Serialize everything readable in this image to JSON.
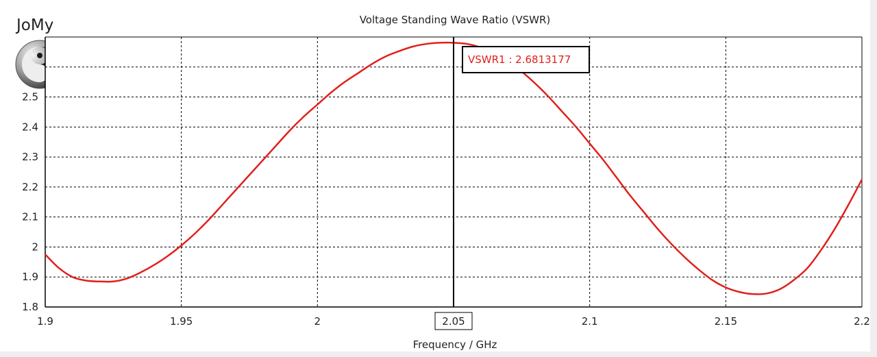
{
  "logo": {
    "text": "JoMy",
    "icon": "yin-yang-icon"
  },
  "chart_data": {
    "type": "line",
    "title": "Voltage Standing Wave Ratio (VSWR)",
    "xlabel": "Frequency / GHz",
    "ylabel": "",
    "xlim": [
      1.9,
      2.2
    ],
    "ylim": [
      1.8,
      2.7
    ],
    "x_ticks": [
      "1.9",
      "1.95",
      "2",
      "2.05",
      "2.1",
      "2.15",
      "2.2"
    ],
    "x_tick_values": [
      1.9,
      1.95,
      2.0,
      2.05,
      2.1,
      2.15,
      2.2
    ],
    "y_ticks": [
      "1.8",
      "1.9",
      "2",
      "2.1",
      "2.2",
      "2.3",
      "2.4",
      "2.5"
    ],
    "y_tick_values": [
      1.8,
      1.9,
      2.0,
      2.1,
      2.2,
      2.3,
      2.4,
      2.5
    ],
    "grid": true,
    "series": [
      {
        "color": "#e0201d",
        "x": [
          1.9,
          1.905,
          1.91,
          1.915,
          1.92,
          1.925,
          1.93,
          1.935,
          1.94,
          1.945,
          1.95,
          1.955,
          1.96,
          1.965,
          1.97,
          1.975,
          1.98,
          1.985,
          1.99,
          1.995,
          2.0,
          2.005,
          2.01,
          2.015,
          2.02,
          2.025,
          2.03,
          2.035,
          2.04,
          2.045,
          2.05,
          2.055,
          2.06,
          2.065,
          2.07,
          2.075,
          2.08,
          2.085,
          2.09,
          2.095,
          2.1,
          2.105,
          2.11,
          2.115,
          2.12,
          2.125,
          2.13,
          2.135,
          2.14,
          2.145,
          2.15,
          2.155,
          2.16,
          2.165,
          2.17,
          2.175,
          2.18,
          2.185,
          2.19,
          2.195,
          2.2
        ],
        "y": [
          1.975,
          1.93,
          1.9,
          1.888,
          1.885,
          1.885,
          1.895,
          1.915,
          1.94,
          1.97,
          2.005,
          2.045,
          2.09,
          2.14,
          2.19,
          2.24,
          2.29,
          2.34,
          2.39,
          2.435,
          2.475,
          2.515,
          2.55,
          2.58,
          2.61,
          2.635,
          2.653,
          2.668,
          2.677,
          2.681,
          2.681,
          2.677,
          2.665,
          2.645,
          2.62,
          2.585,
          2.545,
          2.5,
          2.45,
          2.4,
          2.345,
          2.29,
          2.23,
          2.17,
          2.115,
          2.06,
          2.01,
          1.965,
          1.925,
          1.89,
          1.865,
          1.85,
          1.843,
          1.845,
          1.86,
          1.89,
          1.93,
          1.99,
          2.06,
          2.14,
          2.225
        ]
      }
    ],
    "marker": {
      "x": 2.05,
      "x_label": "2.05",
      "label": "VSWR1 : 2.6813177",
      "color": "#e0201d"
    }
  }
}
